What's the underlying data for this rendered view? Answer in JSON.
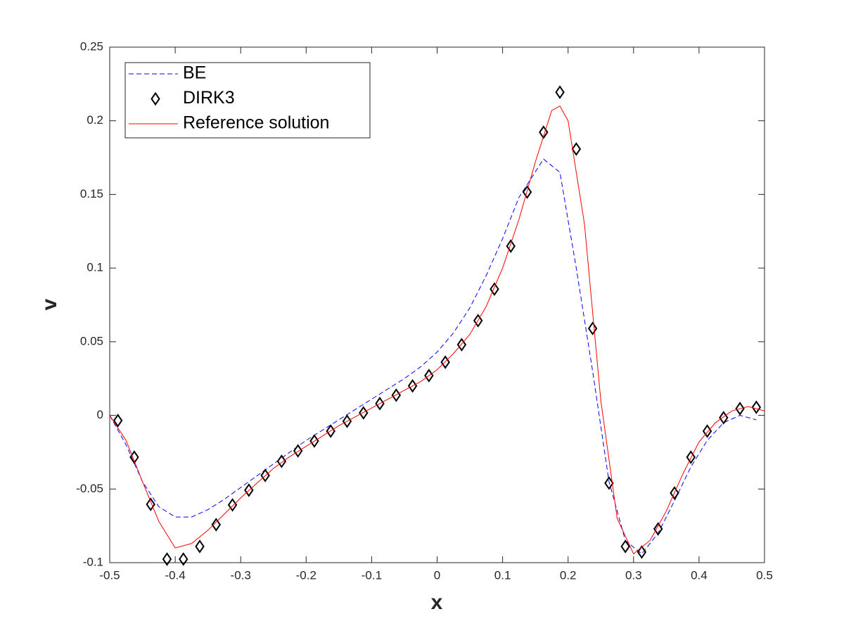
{
  "chart_data": {
    "type": "line",
    "xlabel": "x",
    "ylabel": "v",
    "xlim": [
      -0.5,
      0.5
    ],
    "ylim": [
      -0.1,
      0.25
    ],
    "xticks": [
      -0.5,
      -0.4,
      -0.3,
      -0.2,
      -0.1,
      0,
      0.1,
      0.2,
      0.3,
      0.4,
      0.5
    ],
    "yticks": [
      -0.1,
      -0.05,
      0,
      0.05,
      0.1,
      0.15,
      0.2,
      0.25
    ],
    "grid": false,
    "legend": "northwest",
    "series": [
      {
        "name": "BE",
        "color": "#0000ff",
        "style": "dashed",
        "x": [
          -0.5,
          -0.475,
          -0.45,
          -0.425,
          -0.4,
          -0.375,
          -0.35,
          -0.325,
          -0.3,
          -0.275,
          -0.25,
          -0.225,
          -0.2,
          -0.175,
          -0.15,
          -0.125,
          -0.1,
          -0.075,
          -0.05,
          -0.025,
          0,
          0.025,
          0.05,
          0.075,
          0.1,
          0.125,
          0.1625,
          0.1875,
          0.2125,
          0.2375,
          0.2625,
          0.2875,
          0.3125,
          0.3375,
          0.3625,
          0.3875,
          0.4125,
          0.4375,
          0.4625,
          0.4875
        ],
        "values": [
          0,
          -0.02,
          -0.045,
          -0.062,
          -0.069,
          -0.069,
          -0.064,
          -0.057,
          -0.049,
          -0.041,
          -0.033,
          -0.025,
          -0.017,
          -0.01,
          -0.003,
          0.004,
          0.011,
          0.018,
          0.025,
          0.033,
          0.043,
          0.056,
          0.073,
          0.095,
          0.12,
          0.148,
          0.174,
          0.165,
          0.1,
          0.03,
          -0.045,
          -0.085,
          -0.094,
          -0.08,
          -0.058,
          -0.035,
          -0.017,
          -0.005,
          0,
          -0.003
        ]
      },
      {
        "name": "DIRK3",
        "color": "#000000",
        "style": "diamond",
        "x": [
          -0.4875,
          -0.4625,
          -0.4375,
          -0.4125,
          -0.3875,
          -0.3625,
          -0.3375,
          -0.3125,
          -0.2875,
          -0.2625,
          -0.2375,
          -0.2125,
          -0.1875,
          -0.1625,
          -0.1375,
          -0.1125,
          -0.0875,
          -0.0625,
          -0.0375,
          -0.0125,
          0.0125,
          0.0375,
          0.0625,
          0.0875,
          0.1125,
          0.1375,
          0.1625,
          0.1875,
          0.2125,
          0.2375,
          0.2625,
          0.2875,
          0.3125,
          0.3375,
          0.3625,
          0.3875,
          0.4125,
          0.4375,
          0.4625,
          0.4875
        ],
        "values": [
          -0.0035,
          -0.0284,
          -0.0604,
          -0.0976,
          -0.0976,
          -0.089,
          -0.0742,
          -0.0608,
          -0.0508,
          -0.0408,
          -0.0312,
          -0.0241,
          -0.0174,
          -0.0107,
          -0.004,
          0.0017,
          0.008,
          0.0137,
          0.02,
          0.027,
          0.0361,
          0.048,
          0.0643,
          0.0857,
          0.1149,
          0.1516,
          0.1922,
          0.2194,
          0.1808,
          0.059,
          -0.046,
          -0.089,
          -0.0928,
          -0.0771,
          -0.0527,
          -0.0284,
          -0.0107,
          -0.0016,
          0.0046,
          0.0055
        ]
      },
      {
        "name": "Reference solution",
        "color": "#ff0000",
        "style": "solid",
        "x": [
          -0.5,
          -0.475,
          -0.45,
          -0.425,
          -0.4,
          -0.375,
          -0.35,
          -0.325,
          -0.3,
          -0.275,
          -0.25,
          -0.225,
          -0.2,
          -0.175,
          -0.15,
          -0.125,
          -0.1,
          -0.075,
          -0.05,
          -0.025,
          0,
          0.025,
          0.05,
          0.075,
          0.1,
          0.125,
          0.15,
          0.175,
          0.1875,
          0.2,
          0.225,
          0.25,
          0.275,
          0.3,
          0.325,
          0.35,
          0.375,
          0.4,
          0.425,
          0.45,
          0.475,
          0.5
        ],
        "values": [
          0,
          -0.017,
          -0.045,
          -0.072,
          -0.09,
          -0.087,
          -0.078,
          -0.067,
          -0.056,
          -0.046,
          -0.036,
          -0.028,
          -0.021,
          -0.014,
          -0.007,
          -0.001,
          0.005,
          0.011,
          0.017,
          0.023,
          0.031,
          0.042,
          0.055,
          0.074,
          0.1,
          0.133,
          0.172,
          0.207,
          0.21,
          0.2,
          0.13,
          0.01,
          -0.07,
          -0.094,
          -0.085,
          -0.065,
          -0.04,
          -0.018,
          -0.005,
          0.003,
          0.006,
          0.003
        ]
      }
    ]
  }
}
